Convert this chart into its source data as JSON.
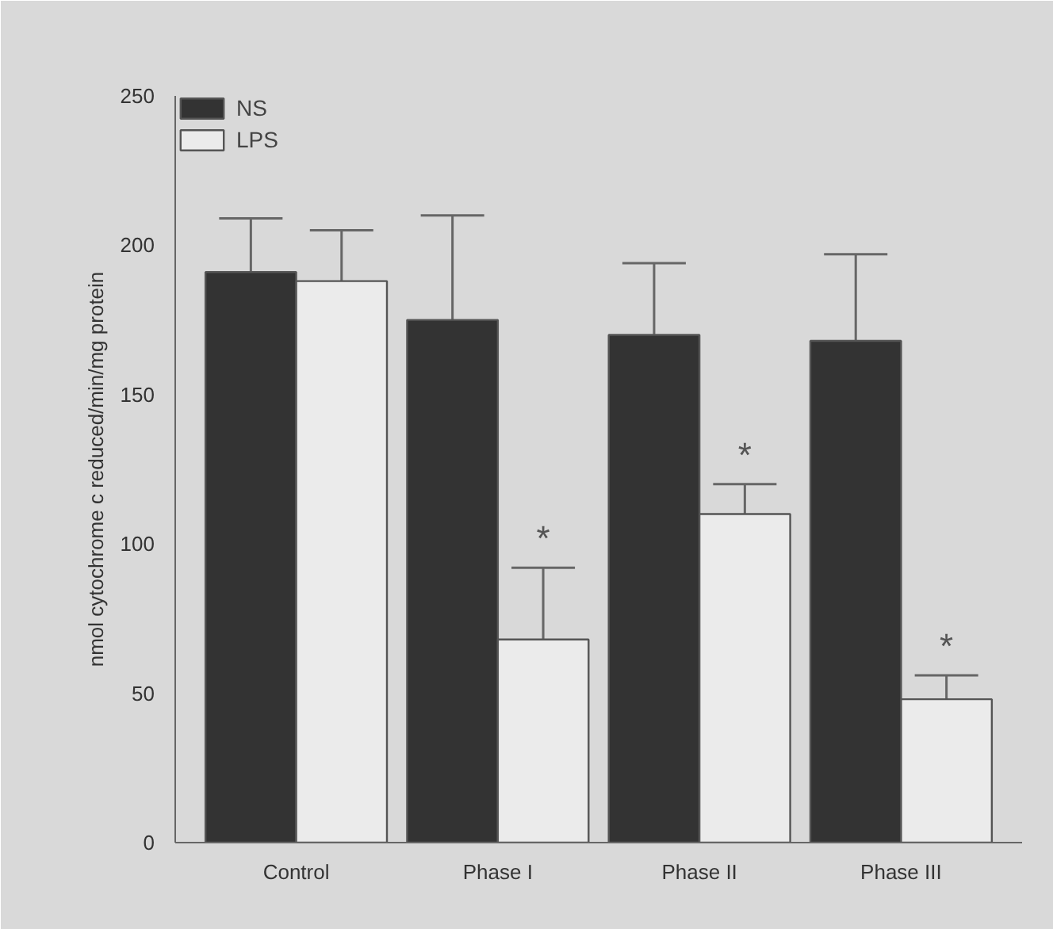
{
  "chart_data": {
    "type": "bar",
    "ylabel": "nmol cytochrome c reduced/min/mg protein",
    "categories": [
      "Control",
      "Phase I",
      "Phase II",
      "Phase III"
    ],
    "series": [
      {
        "name": "NS",
        "color": "#333333",
        "values": [
          191,
          175,
          170,
          168
        ],
        "errors": [
          [
            191,
            209
          ],
          [
            175,
            210
          ],
          [
            170,
            194
          ],
          [
            168,
            197
          ]
        ]
      },
      {
        "name": "LPS",
        "color": "#ebebeb",
        "values": [
          188,
          68,
          110,
          48
        ],
        "errors": [
          [
            188,
            205
          ],
          [
            68,
            92
          ],
          [
            110,
            120
          ],
          [
            48,
            56
          ]
        ],
        "value_labels": [
          null,
          "*",
          "*",
          "*"
        ]
      }
    ],
    "ylim": [
      0,
      250
    ],
    "yticks": [
      0,
      50,
      100,
      150,
      200,
      250
    ],
    "grid": false,
    "legend": "top left"
  }
}
